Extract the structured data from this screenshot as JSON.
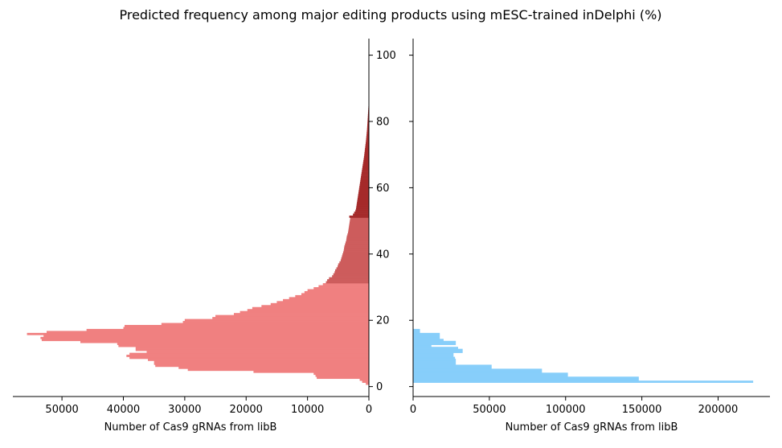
{
  "chart_data": {
    "title": "Predicted frequency among major editing products using mESC-trained inDelphi (%)",
    "type": "bar",
    "orientation": "horizontal",
    "shared_y": {
      "ylim": [
        -3,
        105
      ],
      "ticks": [
        0,
        20,
        40,
        60,
        80,
        100
      ],
      "tick_labels": [
        "0",
        "20",
        "40",
        "60",
        "80",
        "100"
      ],
      "bin_width": 0.6
    },
    "panels": [
      {
        "name": "left",
        "xlabel": "Number of Cas9 gRNAs from libB",
        "xlim": [
          58000,
          0
        ],
        "x_inverted": true,
        "x_ticks": [
          50000,
          40000,
          30000,
          20000,
          10000,
          0
        ],
        "x_tick_labels": [
          "50000",
          "40000",
          "30000",
          "20000",
          "10000",
          "0"
        ],
        "series": [
          {
            "color": "#f08080",
            "y_range": [
              0.6,
              31
            ],
            "bins": [
              {
                "y": 0.6,
                "value": 500
              },
              {
                "y": 1.2,
                "value": 1100
              },
              {
                "y": 1.8,
                "value": 1500
              },
              {
                "y": 2.4,
                "value": 8500
              },
              {
                "y": 3.0,
                "value": 8700
              },
              {
                "y": 3.6,
                "value": 9000
              },
              {
                "y": 4.2,
                "value": 18800
              },
              {
                "y": 4.8,
                "value": 29500
              },
              {
                "y": 5.4,
                "value": 31000
              },
              {
                "y": 6.0,
                "value": 34800
              },
              {
                "y": 6.6,
                "value": 35000
              },
              {
                "y": 7.2,
                "value": 35000
              },
              {
                "y": 7.8,
                "value": 36000
              },
              {
                "y": 8.4,
                "value": 39000
              },
              {
                "y": 9.0,
                "value": 39500
              },
              {
                "y": 9.6,
                "value": 39000
              },
              {
                "y": 10.2,
                "value": 36200
              },
              {
                "y": 10.8,
                "value": 38000
              },
              {
                "y": 11.4,
                "value": 38000
              },
              {
                "y": 12.0,
                "value": 40800
              },
              {
                "y": 12.6,
                "value": 41000
              },
              {
                "y": 13.2,
                "value": 47000
              },
              {
                "y": 13.8,
                "value": 53300
              },
              {
                "y": 14.4,
                "value": 53500
              },
              {
                "y": 15.0,
                "value": 53000
              },
              {
                "y": 15.6,
                "value": 55700
              },
              {
                "y": 16.2,
                "value": 52500
              },
              {
                "y": 16.8,
                "value": 46000
              },
              {
                "y": 17.4,
                "value": 40000
              },
              {
                "y": 18.0,
                "value": 39800
              },
              {
                "y": 18.6,
                "value": 33800
              },
              {
                "y": 19.2,
                "value": 30300
              },
              {
                "y": 19.8,
                "value": 30000
              },
              {
                "y": 20.4,
                "value": 25500
              },
              {
                "y": 21.0,
                "value": 25000
              },
              {
                "y": 21.6,
                "value": 22000
              },
              {
                "y": 22.2,
                "value": 21000
              },
              {
                "y": 22.8,
                "value": 19800
              },
              {
                "y": 23.4,
                "value": 19000
              },
              {
                "y": 24.0,
                "value": 17500
              },
              {
                "y": 24.6,
                "value": 16000
              },
              {
                "y": 25.2,
                "value": 15000
              },
              {
                "y": 25.8,
                "value": 14000
              },
              {
                "y": 26.4,
                "value": 13000
              },
              {
                "y": 27.0,
                "value": 12000
              },
              {
                "y": 27.6,
                "value": 11000
              },
              {
                "y": 28.2,
                "value": 10500
              },
              {
                "y": 28.8,
                "value": 10000
              },
              {
                "y": 29.4,
                "value": 9000
              },
              {
                "y": 30.0,
                "value": 8200
              },
              {
                "y": 30.6,
                "value": 7500
              }
            ]
          },
          {
            "color": "#cd5c5c",
            "y_range": [
              31,
              51
            ],
            "bins": [
              {
                "y": 31.2,
                "value": 7000
              },
              {
                "y": 31.8,
                "value": 6800
              },
              {
                "y": 32.4,
                "value": 6500
              },
              {
                "y": 33.0,
                "value": 6000
              },
              {
                "y": 33.6,
                "value": 5800
              },
              {
                "y": 34.2,
                "value": 5600
              },
              {
                "y": 34.8,
                "value": 5500
              },
              {
                "y": 35.4,
                "value": 5300
              },
              {
                "y": 36.0,
                "value": 5100
              },
              {
                "y": 36.6,
                "value": 5000
              },
              {
                "y": 37.2,
                "value": 4800
              },
              {
                "y": 37.8,
                "value": 4600
              },
              {
                "y": 38.4,
                "value": 4500
              },
              {
                "y": 39.0,
                "value": 4400
              },
              {
                "y": 39.6,
                "value": 4300
              },
              {
                "y": 40.2,
                "value": 4200
              },
              {
                "y": 40.8,
                "value": 4100
              },
              {
                "y": 41.4,
                "value": 4050
              },
              {
                "y": 42.0,
                "value": 4000
              },
              {
                "y": 42.6,
                "value": 3900
              },
              {
                "y": 43.2,
                "value": 3800
              },
              {
                "y": 43.8,
                "value": 3700
              },
              {
                "y": 44.4,
                "value": 3650
              },
              {
                "y": 45.0,
                "value": 3600
              },
              {
                "y": 45.6,
                "value": 3500
              },
              {
                "y": 46.2,
                "value": 3400
              },
              {
                "y": 46.8,
                "value": 3350
              },
              {
                "y": 47.4,
                "value": 3300
              },
              {
                "y": 48.0,
                "value": 3250
              },
              {
                "y": 48.6,
                "value": 3200
              },
              {
                "y": 49.2,
                "value": 3150
              },
              {
                "y": 49.8,
                "value": 3100
              },
              {
                "y": 50.4,
                "value": 3050
              }
            ]
          },
          {
            "color": "#a52a2a",
            "y_range": [
              51,
              86
            ],
            "bins": [
              {
                "y": 51.0,
                "value": 3200
              },
              {
                "y": 51.6,
                "value": 2600
              },
              {
                "y": 52.2,
                "value": 2400
              },
              {
                "y": 52.8,
                "value": 2200
              },
              {
                "y": 53.4,
                "value": 2100
              },
              {
                "y": 54.0,
                "value": 2050
              },
              {
                "y": 54.6,
                "value": 2000
              },
              {
                "y": 55.2,
                "value": 1950
              },
              {
                "y": 55.8,
                "value": 1900
              },
              {
                "y": 56.4,
                "value": 1850
              },
              {
                "y": 57.0,
                "value": 1800
              },
              {
                "y": 57.6,
                "value": 1750
              },
              {
                "y": 58.2,
                "value": 1700
              },
              {
                "y": 58.8,
                "value": 1650
              },
              {
                "y": 59.4,
                "value": 1600
              },
              {
                "y": 60.0,
                "value": 1550
              },
              {
                "y": 60.6,
                "value": 1500
              },
              {
                "y": 61.2,
                "value": 1450
              },
              {
                "y": 61.8,
                "value": 1400
              },
              {
                "y": 62.4,
                "value": 1350
              },
              {
                "y": 63.0,
                "value": 1300
              },
              {
                "y": 63.6,
                "value": 1250
              },
              {
                "y": 64.2,
                "value": 1200
              },
              {
                "y": 64.8,
                "value": 1150
              },
              {
                "y": 65.4,
                "value": 1100
              },
              {
                "y": 66.0,
                "value": 1050
              },
              {
                "y": 66.6,
                "value": 1000
              },
              {
                "y": 67.2,
                "value": 950
              },
              {
                "y": 67.8,
                "value": 900
              },
              {
                "y": 68.4,
                "value": 850
              },
              {
                "y": 69.0,
                "value": 800
              },
              {
                "y": 69.6,
                "value": 760
              },
              {
                "y": 70.2,
                "value": 720
              },
              {
                "y": 70.8,
                "value": 680
              },
              {
                "y": 71.4,
                "value": 640
              },
              {
                "y": 72.0,
                "value": 600
              },
              {
                "y": 72.6,
                "value": 560
              },
              {
                "y": 73.2,
                "value": 520
              },
              {
                "y": 73.8,
                "value": 480
              },
              {
                "y": 74.4,
                "value": 450
              },
              {
                "y": 75.0,
                "value": 420
              },
              {
                "y": 75.6,
                "value": 390
              },
              {
                "y": 76.2,
                "value": 360
              },
              {
                "y": 76.8,
                "value": 330
              },
              {
                "y": 77.4,
                "value": 300
              },
              {
                "y": 78.0,
                "value": 280
              },
              {
                "y": 78.6,
                "value": 260
              },
              {
                "y": 79.2,
                "value": 240
              },
              {
                "y": 79.8,
                "value": 220
              },
              {
                "y": 80.4,
                "value": 200
              },
              {
                "y": 81.0,
                "value": 180
              },
              {
                "y": 81.6,
                "value": 160
              },
              {
                "y": 82.2,
                "value": 140
              },
              {
                "y": 82.8,
                "value": 120
              },
              {
                "y": 83.4,
                "value": 100
              },
              {
                "y": 84.0,
                "value": 80
              },
              {
                "y": 84.6,
                "value": 60
              },
              {
                "y": 85.2,
                "value": 40
              }
            ]
          }
        ]
      },
      {
        "name": "right",
        "xlabel": "Number of Cas9 gRNAs from libB",
        "xlim": [
          0,
          234000
        ],
        "x_inverted": false,
        "x_ticks": [
          0,
          50000,
          100000,
          150000,
          200000
        ],
        "x_tick_labels": [
          "0",
          "50000",
          "100000",
          "150000",
          "200000"
        ],
        "series": [
          {
            "color": "#87cefa",
            "bins": [
              {
                "y": 1.2,
                "value": 223000
              },
              {
                "y": 1.8,
                "value": 148000
              },
              {
                "y": 2.4,
                "value": 148000
              },
              {
                "y": 3.0,
                "value": 101500
              },
              {
                "y": 3.6,
                "value": 101500
              },
              {
                "y": 4.2,
                "value": 84500
              },
              {
                "y": 4.8,
                "value": 84500
              },
              {
                "y": 5.4,
                "value": 51500
              },
              {
                "y": 6.0,
                "value": 51500
              },
              {
                "y": 6.6,
                "value": 28000
              },
              {
                "y": 7.2,
                "value": 28000
              },
              {
                "y": 7.8,
                "value": 28000
              },
              {
                "y": 8.4,
                "value": 27500
              },
              {
                "y": 9.0,
                "value": 26500
              },
              {
                "y": 9.6,
                "value": 26500
              },
              {
                "y": 10.2,
                "value": 32500
              },
              {
                "y": 10.8,
                "value": 32500
              },
              {
                "y": 11.4,
                "value": 29500
              },
              {
                "y": 12.0,
                "value": 12000
              },
              {
                "y": 12.6,
                "value": 28000
              },
              {
                "y": 13.2,
                "value": 28000
              },
              {
                "y": 13.8,
                "value": 20000
              },
              {
                "y": 14.4,
                "value": 17500
              },
              {
                "y": 15.0,
                "value": 17500
              },
              {
                "y": 15.6,
                "value": 17500
              },
              {
                "y": 16.2,
                "value": 4500
              },
              {
                "y": 16.8,
                "value": 4500
              }
            ]
          }
        ]
      }
    ]
  }
}
